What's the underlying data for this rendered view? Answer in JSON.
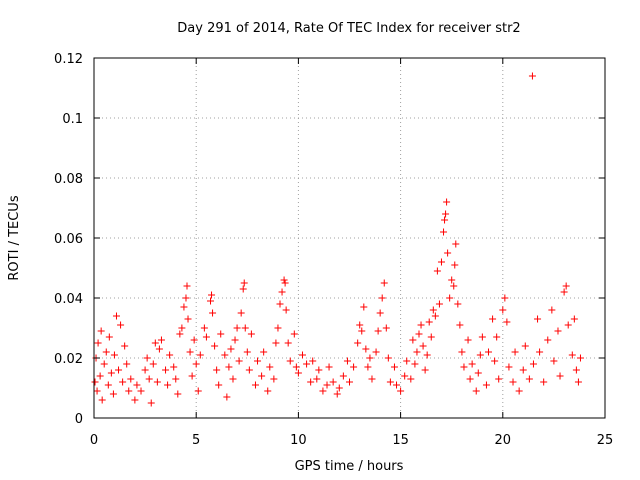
{
  "chart_data": {
    "type": "scatter",
    "title": "Day 291 of 2014, Rate Of TEC Index for receiver str2",
    "xlabel": "GPS time / hours",
    "ylabel": "ROTI / TECUs",
    "xlim": [
      0,
      25
    ],
    "ylim": [
      0,
      0.12
    ],
    "xticks": [
      0,
      5,
      10,
      15,
      20,
      25
    ],
    "yticks": [
      0,
      0.02,
      0.04,
      0.06,
      0.08,
      0.1,
      0.12
    ],
    "xtick_labels": [
      "0",
      "5",
      "10",
      "15",
      "20",
      "25"
    ],
    "ytick_labels": [
      "0",
      "0.02",
      "0.04",
      "0.06",
      "0.08",
      "0.1",
      "0.12"
    ],
    "grid": true,
    "marker": "+",
    "color": "#ff0000",
    "series": [
      {
        "name": "ROTI",
        "points": [
          [
            0.05,
            0.012
          ],
          [
            0.1,
            0.02
          ],
          [
            0.15,
            0.009
          ],
          [
            0.2,
            0.025
          ],
          [
            0.3,
            0.014
          ],
          [
            0.35,
            0.029
          ],
          [
            0.4,
            0.006
          ],
          [
            0.5,
            0.018
          ],
          [
            0.6,
            0.022
          ],
          [
            0.7,
            0.011
          ],
          [
            0.75,
            0.027
          ],
          [
            0.85,
            0.015
          ],
          [
            0.95,
            0.008
          ],
          [
            1.0,
            0.021
          ],
          [
            1.1,
            0.034
          ],
          [
            1.2,
            0.016
          ],
          [
            1.3,
            0.031
          ],
          [
            1.4,
            0.012
          ],
          [
            1.5,
            0.024
          ],
          [
            1.6,
            0.018
          ],
          [
            1.7,
            0.009
          ],
          [
            1.8,
            0.013
          ],
          [
            2.0,
            0.006
          ],
          [
            2.1,
            0.011
          ],
          [
            2.3,
            0.009
          ],
          [
            2.5,
            0.016
          ],
          [
            2.6,
            0.02
          ],
          [
            2.7,
            0.013
          ],
          [
            2.8,
            0.005
          ],
          [
            2.9,
            0.018
          ],
          [
            3.0,
            0.025
          ],
          [
            3.1,
            0.012
          ],
          [
            3.2,
            0.023
          ],
          [
            3.3,
            0.026
          ],
          [
            3.5,
            0.016
          ],
          [
            3.6,
            0.011
          ],
          [
            3.7,
            0.021
          ],
          [
            3.9,
            0.017
          ],
          [
            4.0,
            0.013
          ],
          [
            4.1,
            0.008
          ],
          [
            4.2,
            0.028
          ],
          [
            4.3,
            0.03
          ],
          [
            4.4,
            0.037
          ],
          [
            4.5,
            0.04
          ],
          [
            4.55,
            0.044
          ],
          [
            4.6,
            0.033
          ],
          [
            4.7,
            0.022
          ],
          [
            4.8,
            0.014
          ],
          [
            4.9,
            0.026
          ],
          [
            5.0,
            0.018
          ],
          [
            5.1,
            0.009
          ],
          [
            5.2,
            0.021
          ],
          [
            5.4,
            0.03
          ],
          [
            5.5,
            0.027
          ],
          [
            5.7,
            0.039
          ],
          [
            5.75,
            0.041
          ],
          [
            5.8,
            0.035
          ],
          [
            5.9,
            0.024
          ],
          [
            6.0,
            0.016
          ],
          [
            6.1,
            0.011
          ],
          [
            6.2,
            0.028
          ],
          [
            6.4,
            0.021
          ],
          [
            6.5,
            0.007
          ],
          [
            6.6,
            0.017
          ],
          [
            6.7,
            0.023
          ],
          [
            6.8,
            0.013
          ],
          [
            6.9,
            0.026
          ],
          [
            7.0,
            0.03
          ],
          [
            7.1,
            0.019
          ],
          [
            7.2,
            0.035
          ],
          [
            7.3,
            0.043
          ],
          [
            7.35,
            0.045
          ],
          [
            7.4,
            0.03
          ],
          [
            7.5,
            0.022
          ],
          [
            7.6,
            0.016
          ],
          [
            7.7,
            0.028
          ],
          [
            7.9,
            0.011
          ],
          [
            8.0,
            0.019
          ],
          [
            8.2,
            0.014
          ],
          [
            8.3,
            0.022
          ],
          [
            8.5,
            0.009
          ],
          [
            8.6,
            0.017
          ],
          [
            8.8,
            0.013
          ],
          [
            8.9,
            0.025
          ],
          [
            9.0,
            0.03
          ],
          [
            9.1,
            0.038
          ],
          [
            9.2,
            0.042
          ],
          [
            9.3,
            0.046
          ],
          [
            9.35,
            0.045
          ],
          [
            9.4,
            0.036
          ],
          [
            9.5,
            0.025
          ],
          [
            9.6,
            0.019
          ],
          [
            9.8,
            0.028
          ],
          [
            9.9,
            0.017
          ],
          [
            10.0,
            0.015
          ],
          [
            10.2,
            0.021
          ],
          [
            10.4,
            0.018
          ],
          [
            10.6,
            0.012
          ],
          [
            10.7,
            0.019
          ],
          [
            10.9,
            0.013
          ],
          [
            11.0,
            0.016
          ],
          [
            11.2,
            0.009
          ],
          [
            11.4,
            0.011
          ],
          [
            11.5,
            0.017
          ],
          [
            11.7,
            0.012
          ],
          [
            11.9,
            0.008
          ],
          [
            12.0,
            0.01
          ],
          [
            12.2,
            0.014
          ],
          [
            12.4,
            0.019
          ],
          [
            12.5,
            0.012
          ],
          [
            12.7,
            0.017
          ],
          [
            12.9,
            0.025
          ],
          [
            13.0,
            0.031
          ],
          [
            13.1,
            0.029
          ],
          [
            13.2,
            0.037
          ],
          [
            13.3,
            0.023
          ],
          [
            13.4,
            0.017
          ],
          [
            13.5,
            0.02
          ],
          [
            13.6,
            0.013
          ],
          [
            13.8,
            0.022
          ],
          [
            13.9,
            0.029
          ],
          [
            14.0,
            0.035
          ],
          [
            14.1,
            0.04
          ],
          [
            14.2,
            0.045
          ],
          [
            14.3,
            0.03
          ],
          [
            14.4,
            0.02
          ],
          [
            14.5,
            0.012
          ],
          [
            14.7,
            0.017
          ],
          [
            14.8,
            0.011
          ],
          [
            15.0,
            0.009
          ],
          [
            15.2,
            0.014
          ],
          [
            15.3,
            0.019
          ],
          [
            15.5,
            0.013
          ],
          [
            15.6,
            0.026
          ],
          [
            15.7,
            0.018
          ],
          [
            15.8,
            0.022
          ],
          [
            15.9,
            0.028
          ],
          [
            16.0,
            0.031
          ],
          [
            16.1,
            0.024
          ],
          [
            16.2,
            0.016
          ],
          [
            16.3,
            0.021
          ],
          [
            16.4,
            0.032
          ],
          [
            16.5,
            0.027
          ],
          [
            16.6,
            0.036
          ],
          [
            16.7,
            0.034
          ],
          [
            16.8,
            0.049
          ],
          [
            16.9,
            0.038
          ],
          [
            17.0,
            0.052
          ],
          [
            17.1,
            0.062
          ],
          [
            17.15,
            0.066
          ],
          [
            17.2,
            0.068
          ],
          [
            17.25,
            0.072
          ],
          [
            17.3,
            0.055
          ],
          [
            17.4,
            0.04
          ],
          [
            17.5,
            0.046
          ],
          [
            17.6,
            0.044
          ],
          [
            17.65,
            0.051
          ],
          [
            17.7,
            0.058
          ],
          [
            17.8,
            0.038
          ],
          [
            17.9,
            0.031
          ],
          [
            18.0,
            0.022
          ],
          [
            18.1,
            0.017
          ],
          [
            18.3,
            0.026
          ],
          [
            18.4,
            0.013
          ],
          [
            18.5,
            0.018
          ],
          [
            18.7,
            0.009
          ],
          [
            18.8,
            0.015
          ],
          [
            18.9,
            0.021
          ],
          [
            19.0,
            0.027
          ],
          [
            19.2,
            0.011
          ],
          [
            19.3,
            0.022
          ],
          [
            19.5,
            0.033
          ],
          [
            19.6,
            0.019
          ],
          [
            19.7,
            0.027
          ],
          [
            19.8,
            0.013
          ],
          [
            20.0,
            0.036
          ],
          [
            20.1,
            0.04
          ],
          [
            20.2,
            0.032
          ],
          [
            20.3,
            0.017
          ],
          [
            20.5,
            0.012
          ],
          [
            20.6,
            0.022
          ],
          [
            20.8,
            0.009
          ],
          [
            21.0,
            0.016
          ],
          [
            21.1,
            0.024
          ],
          [
            21.3,
            0.013
          ],
          [
            21.45,
            0.114
          ],
          [
            21.5,
            0.018
          ],
          [
            21.7,
            0.033
          ],
          [
            21.8,
            0.022
          ],
          [
            22.0,
            0.012
          ],
          [
            22.2,
            0.026
          ],
          [
            22.4,
            0.036
          ],
          [
            22.5,
            0.019
          ],
          [
            22.7,
            0.029
          ],
          [
            22.8,
            0.014
          ],
          [
            23.0,
            0.042
          ],
          [
            23.1,
            0.044
          ],
          [
            23.2,
            0.031
          ],
          [
            23.4,
            0.021
          ],
          [
            23.5,
            0.033
          ],
          [
            23.6,
            0.016
          ],
          [
            23.7,
            0.012
          ],
          [
            23.8,
            0.02
          ]
        ]
      }
    ]
  }
}
